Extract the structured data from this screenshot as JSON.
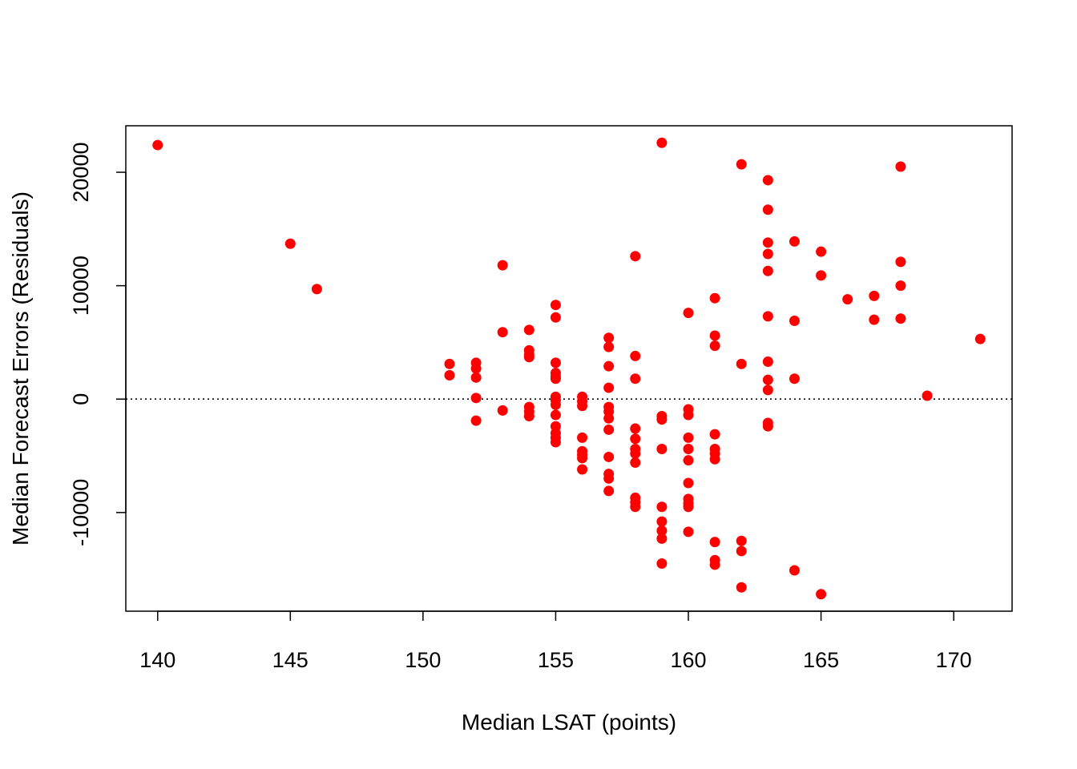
{
  "chart_data": {
    "type": "scatter",
    "title": "",
    "xlabel": "Median LSAT (points)",
    "ylabel": "Median Forecast Errors (Residuals)",
    "xlim": [
      138.8,
      172.2
    ],
    "ylim": [
      -18700,
      24100
    ],
    "xticks": [
      140,
      145,
      150,
      155,
      160,
      165,
      170
    ],
    "yticks": [
      -10000,
      0,
      10000,
      20000
    ],
    "reference_line": {
      "y": 0,
      "style": "dotted"
    },
    "point_color": "#ff0000",
    "points": [
      {
        "x": 140,
        "y": 22400
      },
      {
        "x": 145,
        "y": 13700
      },
      {
        "x": 146,
        "y": 9700
      },
      {
        "x": 151,
        "y": 3100
      },
      {
        "x": 151,
        "y": 2100
      },
      {
        "x": 152,
        "y": 3200
      },
      {
        "x": 152,
        "y": 2700
      },
      {
        "x": 152,
        "y": 1900
      },
      {
        "x": 152,
        "y": 100
      },
      {
        "x": 152,
        "y": -1900
      },
      {
        "x": 153,
        "y": 11800
      },
      {
        "x": 153,
        "y": 5900
      },
      {
        "x": 153,
        "y": -1000
      },
      {
        "x": 154,
        "y": 6100
      },
      {
        "x": 154,
        "y": 4300
      },
      {
        "x": 154,
        "y": 3900
      },
      {
        "x": 154,
        "y": 3700
      },
      {
        "x": 154,
        "y": -700
      },
      {
        "x": 154,
        "y": -1100
      },
      {
        "x": 154,
        "y": -1500
      },
      {
        "x": 155,
        "y": 8300
      },
      {
        "x": 155,
        "y": 7200
      },
      {
        "x": 155,
        "y": 3200
      },
      {
        "x": 155,
        "y": 2300
      },
      {
        "x": 155,
        "y": 2000
      },
      {
        "x": 155,
        "y": 1800
      },
      {
        "x": 155,
        "y": 200
      },
      {
        "x": 155,
        "y": -100
      },
      {
        "x": 155,
        "y": -500
      },
      {
        "x": 155,
        "y": -1400
      },
      {
        "x": 155,
        "y": -2400
      },
      {
        "x": 155,
        "y": -3000
      },
      {
        "x": 155,
        "y": -3400
      },
      {
        "x": 155,
        "y": -3800
      },
      {
        "x": 156,
        "y": 200
      },
      {
        "x": 156,
        "y": -200
      },
      {
        "x": 156,
        "y": -600
      },
      {
        "x": 156,
        "y": -3400
      },
      {
        "x": 156,
        "y": -4600
      },
      {
        "x": 156,
        "y": -4900
      },
      {
        "x": 156,
        "y": -5200
      },
      {
        "x": 156,
        "y": -6200
      },
      {
        "x": 157,
        "y": 5400
      },
      {
        "x": 157,
        "y": 4600
      },
      {
        "x": 157,
        "y": 2900
      },
      {
        "x": 157,
        "y": 1000
      },
      {
        "x": 157,
        "y": -700
      },
      {
        "x": 157,
        "y": -1100
      },
      {
        "x": 157,
        "y": -1700
      },
      {
        "x": 157,
        "y": -2700
      },
      {
        "x": 157,
        "y": -5100
      },
      {
        "x": 157,
        "y": -6600
      },
      {
        "x": 157,
        "y": -7000
      },
      {
        "x": 157,
        "y": -8100
      },
      {
        "x": 158,
        "y": 12600
      },
      {
        "x": 158,
        "y": 3800
      },
      {
        "x": 158,
        "y": 1800
      },
      {
        "x": 158,
        "y": -2600
      },
      {
        "x": 158,
        "y": -3500
      },
      {
        "x": 158,
        "y": -4400
      },
      {
        "x": 158,
        "y": -4800
      },
      {
        "x": 158,
        "y": -5600
      },
      {
        "x": 158,
        "y": -8700
      },
      {
        "x": 158,
        "y": -9100
      },
      {
        "x": 158,
        "y": -9500
      },
      {
        "x": 159,
        "y": 22600
      },
      {
        "x": 159,
        "y": -1500
      },
      {
        "x": 159,
        "y": -1800
      },
      {
        "x": 159,
        "y": -4400
      },
      {
        "x": 159,
        "y": -9500
      },
      {
        "x": 159,
        "y": -10800
      },
      {
        "x": 159,
        "y": -11600
      },
      {
        "x": 159,
        "y": -12300
      },
      {
        "x": 159,
        "y": -14500
      },
      {
        "x": 160,
        "y": 7600
      },
      {
        "x": 160,
        "y": -900
      },
      {
        "x": 160,
        "y": -1400
      },
      {
        "x": 160,
        "y": -3400
      },
      {
        "x": 160,
        "y": -4400
      },
      {
        "x": 160,
        "y": -5400
      },
      {
        "x": 160,
        "y": -7400
      },
      {
        "x": 160,
        "y": -8800
      },
      {
        "x": 160,
        "y": -9200
      },
      {
        "x": 160,
        "y": -9500
      },
      {
        "x": 160,
        "y": -11700
      },
      {
        "x": 161,
        "y": 8900
      },
      {
        "x": 161,
        "y": 5600
      },
      {
        "x": 161,
        "y": 4700
      },
      {
        "x": 161,
        "y": -3100
      },
      {
        "x": 161,
        "y": -4400
      },
      {
        "x": 161,
        "y": -4800
      },
      {
        "x": 161,
        "y": -5300
      },
      {
        "x": 161,
        "y": -12600
      },
      {
        "x": 161,
        "y": -14200
      },
      {
        "x": 161,
        "y": -14600
      },
      {
        "x": 162,
        "y": 20700
      },
      {
        "x": 162,
        "y": 3100
      },
      {
        "x": 162,
        "y": -12500
      },
      {
        "x": 162,
        "y": -13400
      },
      {
        "x": 162,
        "y": -16600
      },
      {
        "x": 163,
        "y": 19300
      },
      {
        "x": 163,
        "y": 16700
      },
      {
        "x": 163,
        "y": 13800
      },
      {
        "x": 163,
        "y": 12800
      },
      {
        "x": 163,
        "y": 11300
      },
      {
        "x": 163,
        "y": 7300
      },
      {
        "x": 163,
        "y": 3300
      },
      {
        "x": 163,
        "y": 1700
      },
      {
        "x": 163,
        "y": 800
      },
      {
        "x": 163,
        "y": -2100
      },
      {
        "x": 163,
        "y": -2400
      },
      {
        "x": 164,
        "y": 13900
      },
      {
        "x": 164,
        "y": 6900
      },
      {
        "x": 164,
        "y": 1800
      },
      {
        "x": 164,
        "y": -15100
      },
      {
        "x": 165,
        "y": 13000
      },
      {
        "x": 165,
        "y": 10900
      },
      {
        "x": 165,
        "y": -17200
      },
      {
        "x": 166,
        "y": 8800
      },
      {
        "x": 167,
        "y": 9100
      },
      {
        "x": 167,
        "y": 7000
      },
      {
        "x": 168,
        "y": 20500
      },
      {
        "x": 168,
        "y": 12100
      },
      {
        "x": 168,
        "y": 10000
      },
      {
        "x": 168,
        "y": 7100
      },
      {
        "x": 169,
        "y": 300
      },
      {
        "x": 171,
        "y": 5300
      }
    ]
  }
}
